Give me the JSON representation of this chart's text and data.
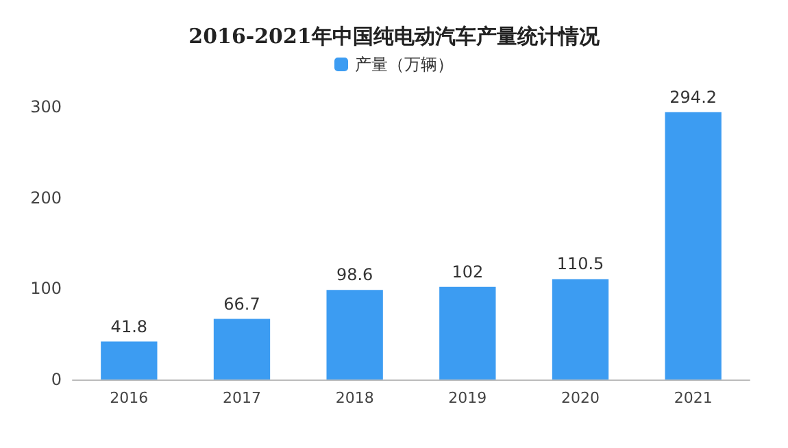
{
  "chart_data": {
    "type": "bar",
    "title": "2016-2021年中国纯电动汽车产量统计情况",
    "categories": [
      "2016",
      "2017",
      "2018",
      "2019",
      "2020",
      "2021"
    ],
    "series": [
      {
        "name": "产量（万辆）",
        "color": "#3c9cf2",
        "values": [
          41.8,
          66.7,
          98.6,
          102,
          110.5,
          294.2
        ]
      }
    ],
    "ylim": [
      0,
      300
    ],
    "yticks": [
      0,
      100,
      200,
      300
    ],
    "grid": false,
    "legend": "top",
    "data_labels": true
  }
}
